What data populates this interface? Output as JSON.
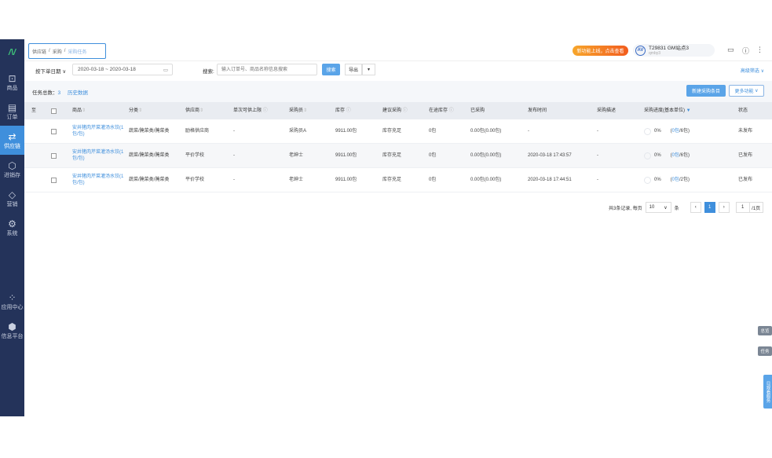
{
  "sidebar": {
    "logo": "/\\/",
    "items": [
      {
        "label": "商品",
        "icon": "bag-icon"
      },
      {
        "label": "订单",
        "icon": "document-icon"
      },
      {
        "label": "供应链",
        "icon": "swap-icon",
        "active": true
      },
      {
        "label": "进销存",
        "icon": "cube-icon"
      },
      {
        "label": "营销",
        "icon": "tag-icon"
      },
      {
        "label": "系统",
        "icon": "gear-icon"
      },
      {
        "label": "应用中心",
        "icon": "apps-icon"
      },
      {
        "label": "信息平台",
        "icon": "box-icon"
      }
    ]
  },
  "breadcrumb": [
    "供应链",
    "采购",
    "采购任务"
  ],
  "header": {
    "promo": "新功能上线，点击查看",
    "user_name": "T29831 GM站点3",
    "user_sub": "qmby3",
    "avatar": "AV"
  },
  "filter": {
    "date_type": "按下单日期",
    "date_range": "2020-03-18 ~ 2020-03-18",
    "search_label": "搜索:",
    "search_placeholder": "输入订单号、商品名称信息搜索",
    "search_button": "搜索",
    "export_button": "导出",
    "advanced": "高级筛选"
  },
  "summary": {
    "total_label": "任务总数：",
    "total": "3",
    "history": "历史数据",
    "new_button": "新建采购条目",
    "more_button": "更多功能"
  },
  "table": {
    "headers": [
      "至",
      "",
      "商品",
      "分类",
      "供应商",
      "单次可供上限",
      "采购员",
      "库存",
      "建议采购",
      "在途库存",
      "已采购",
      "发布时间",
      "采购描述",
      "采购进度(基本单位)",
      "状态"
    ],
    "rows": [
      {
        "product": "安井猪肉芹菜灌汤水饺(1包/包)",
        "category": "蔬菜/腌菜类/腌菜类",
        "supplier": "励格供应商",
        "limit": "-",
        "buyer": "采购员A",
        "stock": "9911.00包",
        "suggest": "库存充足",
        "transit": "0包",
        "purchased": "0.00包(0.00包)",
        "time": "-",
        "desc": "-",
        "pct": "0%",
        "progress_done": "0包",
        "progress_total": "/6包)",
        "status": "未发布"
      },
      {
        "product": "安井猪肉芹菜灌汤水饺(1包/包)",
        "category": "蔬菜/腌菜类/腌菜类",
        "supplier": "平价学校",
        "limit": "-",
        "buyer": "老绅士",
        "stock": "9911.00包",
        "suggest": "库存充足",
        "transit": "0包",
        "purchased": "0.00包(0.00包)",
        "time": "2020-03-18 17:43:57",
        "desc": "-",
        "pct": "0%",
        "progress_done": "0包",
        "progress_total": "/6包)",
        "status": "已发布"
      },
      {
        "product": "安井猪肉芹菜灌汤水饺(1包/包)",
        "category": "蔬菜/腌菜类/腌菜类",
        "supplier": "平价学校",
        "limit": "-",
        "buyer": "老绅士",
        "stock": "9911.00包",
        "suggest": "库存充足",
        "transit": "0包",
        "purchased": "0.00包(0.00包)",
        "time": "2020-03-18 17:44:51",
        "desc": "-",
        "pct": "0%",
        "progress_done": "0包",
        "progress_total": "/2包)",
        "status": "已发布"
      }
    ]
  },
  "pagination": {
    "summary": "共3条记录, 每页",
    "page_size": "10",
    "unit": "条",
    "current": "1",
    "goto": "1",
    "total_pages": "/1页"
  },
  "floats": {
    "overview": "总览",
    "task": "任务",
    "service": "日观看服务"
  }
}
